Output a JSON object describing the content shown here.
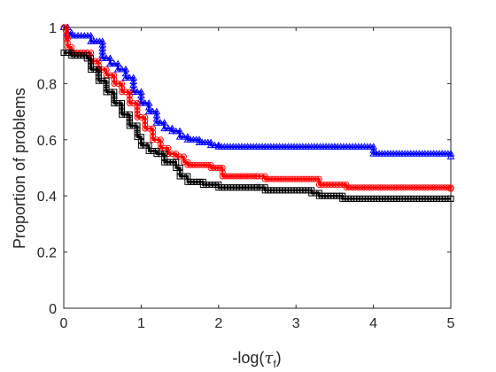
{
  "chart_data": {
    "type": "line",
    "title": "",
    "xlabel": {
      "prefix": "-log(",
      "symbol": "τ",
      "subscript": "f",
      "suffix": ")"
    },
    "ylabel": "Proportion of problems",
    "xlim": [
      0,
      5
    ],
    "ylim": [
      0,
      1
    ],
    "xticks": [
      "0",
      "1",
      "2",
      "3",
      "4",
      "5"
    ],
    "yticks": [
      "0",
      "0.2",
      "0.4",
      "0.6",
      "0.8",
      "1"
    ],
    "grid": false,
    "legend": "none",
    "series": [
      {
        "color": "#0000ff",
        "marker": "triangle",
        "x": [
          0,
          0.05,
          0.1,
          0.35,
          0.5,
          0.6,
          0.7,
          0.8,
          0.9,
          1.0,
          1.1,
          1.2,
          1.3,
          1.4,
          1.5,
          1.6,
          1.75,
          1.9,
          2.0,
          3.5,
          4.0,
          5.0
        ],
        "y": [
          1.0,
          0.98,
          0.97,
          0.95,
          0.89,
          0.87,
          0.85,
          0.82,
          0.77,
          0.73,
          0.7,
          0.66,
          0.64,
          0.63,
          0.61,
          0.6,
          0.59,
          0.58,
          0.575,
          0.575,
          0.55,
          0.54
        ]
      },
      {
        "color": "#ff0000",
        "marker": "circle",
        "x": [
          0,
          0.03,
          0.05,
          0.1,
          0.3,
          0.35,
          0.45,
          0.55,
          0.65,
          0.75,
          0.85,
          0.95,
          1.05,
          1.15,
          1.25,
          1.35,
          1.45,
          1.55,
          1.6,
          1.9,
          2.05,
          2.5,
          2.6,
          3.3,
          3.65,
          5.0
        ],
        "y": [
          1.0,
          0.96,
          0.93,
          0.91,
          0.91,
          0.88,
          0.85,
          0.83,
          0.8,
          0.77,
          0.73,
          0.68,
          0.64,
          0.6,
          0.57,
          0.55,
          0.54,
          0.52,
          0.51,
          0.5,
          0.47,
          0.47,
          0.46,
          0.44,
          0.43,
          0.425
        ]
      },
      {
        "color": "#000000",
        "marker": "square",
        "x": [
          0,
          0.1,
          0.3,
          0.35,
          0.45,
          0.55,
          0.65,
          0.75,
          0.85,
          0.95,
          1.0,
          1.1,
          1.2,
          1.3,
          1.45,
          1.5,
          1.6,
          1.8,
          2.0,
          2.5,
          2.6,
          3.2,
          3.3,
          3.6,
          5.0
        ],
        "y": [
          0.91,
          0.9,
          0.89,
          0.85,
          0.81,
          0.77,
          0.73,
          0.69,
          0.65,
          0.61,
          0.58,
          0.56,
          0.55,
          0.52,
          0.5,
          0.47,
          0.45,
          0.44,
          0.43,
          0.43,
          0.42,
          0.41,
          0.4,
          0.39,
          0.39
        ]
      }
    ]
  }
}
